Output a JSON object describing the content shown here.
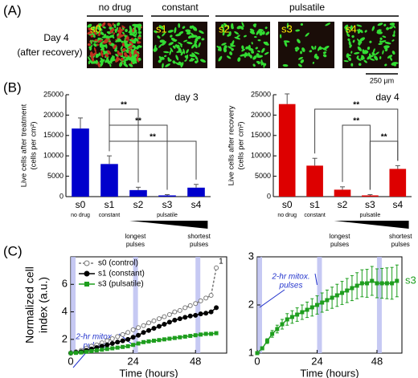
{
  "panel_labels": [
    "(A)",
    "(B)",
    "(C)"
  ],
  "panel_a": {
    "groups": [
      "no drug",
      "constant",
      "pulsatile"
    ],
    "caption": [
      "Day 4",
      "(after recovery)"
    ],
    "images": [
      "s0",
      "s1",
      "s2",
      "s3",
      "s4"
    ],
    "scale_bar": "250 µm"
  },
  "chart_data": [
    {
      "type": "bar",
      "title": "day 3",
      "ylabel": [
        "Live cells after treatment",
        "(cells per cm²)"
      ],
      "categories": [
        "s0",
        "s1",
        "s2",
        "s3",
        "s4"
      ],
      "sublabels": [
        "no drug",
        "constant",
        null,
        null,
        null
      ],
      "group_label": "pulsatile",
      "group_ends": [
        [
          "longest",
          "pulses"
        ],
        [
          "shortest",
          "pulses"
        ]
      ],
      "values": [
        16700,
        8000,
        1600,
        300,
        2200
      ],
      "errors": [
        2600,
        2000,
        700,
        200,
        800
      ],
      "color": "#0000cc",
      "ylim": [
        0,
        25000
      ],
      "yticks": [
        0,
        5000,
        10000,
        15000,
        20000,
        25000
      ],
      "significance": [
        {
          "between": [
            1,
            2
          ],
          "label": "**"
        },
        {
          "between": [
            1,
            3
          ],
          "label": "**"
        },
        {
          "between": [
            1,
            4
          ],
          "label": "**"
        }
      ]
    },
    {
      "type": "bar",
      "title": "day 4",
      "ylabel": [
        "Live cells after recovery",
        "(cells per cm²)"
      ],
      "categories": [
        "s0",
        "s1",
        "s2",
        "s3",
        "s4"
      ],
      "sublabels": [
        "no drug",
        "constant",
        null,
        null,
        null
      ],
      "group_label": "pulsatile",
      "group_ends": [
        [
          "longest",
          "pulses"
        ],
        [
          "shortest",
          "pulses"
        ]
      ],
      "values": [
        22700,
        7600,
        1700,
        300,
        6800
      ],
      "errors": [
        2500,
        1800,
        700,
        200,
        800
      ],
      "color": "#dd0000",
      "ylim": [
        0,
        25000
      ],
      "yticks": [
        0,
        5000,
        10000,
        15000,
        20000,
        25000
      ],
      "significance": [
        {
          "between": [
            1,
            4
          ],
          "label": "**"
        },
        {
          "between": [
            2,
            3
          ],
          "label": "**"
        },
        {
          "between": [
            3,
            4
          ],
          "label": "**"
        }
      ]
    },
    {
      "type": "line",
      "ylabel": [
        "Normalized cell",
        "index (a.u.)"
      ],
      "xlabel": "Time (hours)",
      "xlim": [
        0,
        60
      ],
      "xticks": [
        0,
        24,
        48
      ],
      "ylim": [
        1,
        8
      ],
      "yticks": [
        2,
        4,
        6
      ],
      "pulses": [
        0,
        24,
        48
      ],
      "annotation": [
        "2-hr mitox.",
        "pulses"
      ],
      "legend": "upper left",
      "end_label": "1",
      "x": [
        0,
        2,
        4,
        6,
        8,
        10,
        12,
        14,
        16,
        18,
        20,
        22,
        24,
        26,
        28,
        30,
        32,
        34,
        36,
        38,
        40,
        42,
        44,
        46,
        48,
        50,
        52,
        54,
        56
      ],
      "series": [
        {
          "name": "s0 (control)",
          "color": "#777777",
          "marker": "circle-open",
          "dash": true,
          "values": [
            1,
            1.1,
            1.2,
            1.35,
            1.5,
            1.6,
            1.75,
            1.9,
            2.05,
            2.2,
            2.35,
            2.5,
            2.7,
            2.85,
            3.0,
            3.2,
            3.35,
            3.5,
            3.65,
            3.8,
            4.0,
            4.1,
            4.3,
            4.45,
            4.6,
            4.8,
            5.0,
            5.2,
            7.2
          ]
        },
        {
          "name": "s1 (constant)",
          "color": "#000000",
          "marker": "circle",
          "dash": false,
          "values": [
            1,
            1.05,
            1.1,
            1.2,
            1.3,
            1.4,
            1.5,
            1.6,
            1.7,
            1.8,
            1.9,
            2.0,
            2.15,
            2.3,
            2.5,
            2.65,
            2.8,
            2.95,
            3.1,
            3.25,
            3.4,
            3.5,
            3.6,
            3.7,
            3.75,
            3.85,
            3.9,
            4.0,
            4.3
          ]
        },
        {
          "name": "s3 (pulsatile)",
          "color": "#1e9e1e",
          "marker": "square",
          "dash": false,
          "values": [
            1,
            1.02,
            1.05,
            1.1,
            1.15,
            1.2,
            1.25,
            1.3,
            1.35,
            1.4,
            1.45,
            1.5,
            1.6,
            1.7,
            1.8,
            1.85,
            1.9,
            1.95,
            2.0,
            2.05,
            2.1,
            2.15,
            2.2,
            2.25,
            2.3,
            2.35,
            2.4,
            2.4,
            2.45
          ]
        }
      ]
    },
    {
      "type": "line",
      "xlabel": "Time (hours)",
      "xlim": [
        0,
        58
      ],
      "xticks": [
        0,
        24,
        48
      ],
      "ylim": [
        1,
        3
      ],
      "yticks": [
        1,
        2,
        3
      ],
      "pulses": [
        0,
        24,
        48
      ],
      "annotation": [
        "2-hr mitox.",
        "pulses"
      ],
      "x": [
        0,
        2,
        4,
        6,
        8,
        10,
        12,
        14,
        16,
        18,
        20,
        22,
        24,
        26,
        28,
        30,
        32,
        34,
        36,
        38,
        40,
        42,
        44,
        46,
        48,
        50,
        52,
        54,
        56
      ],
      "series": [
        {
          "name": "s3",
          "color": "#1e9e1e",
          "marker": "square",
          "dash": false,
          "end_name": true,
          "values": [
            1,
            1.1,
            1.25,
            1.4,
            1.5,
            1.6,
            1.7,
            1.75,
            1.8,
            1.85,
            1.9,
            1.95,
            2.0,
            2.05,
            2.1,
            2.15,
            2.2,
            2.25,
            2.3,
            2.35,
            2.4,
            2.45,
            2.45,
            2.5,
            2.45,
            2.45,
            2.45,
            2.45,
            2.5
          ],
          "errors": [
            0,
            0.03,
            0.05,
            0.07,
            0.08,
            0.1,
            0.12,
            0.13,
            0.14,
            0.15,
            0.16,
            0.18,
            0.19,
            0.2,
            0.21,
            0.22,
            0.23,
            0.24,
            0.25,
            0.26,
            0.27,
            0.28,
            0.29,
            0.3,
            0.3,
            0.31,
            0.32,
            0.33,
            0.33
          ]
        }
      ]
    }
  ]
}
